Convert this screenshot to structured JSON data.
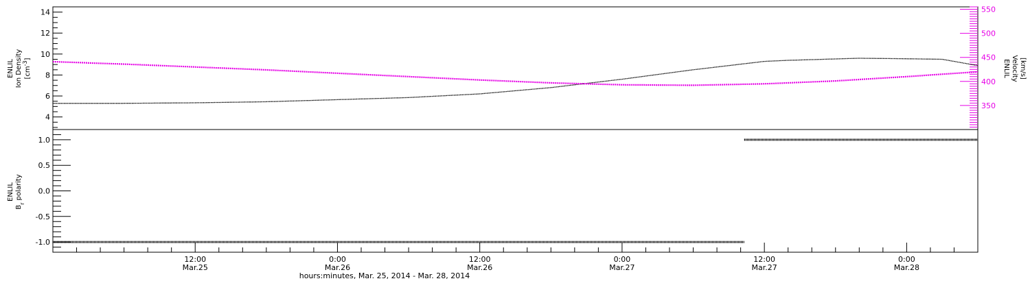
{
  "colors": {
    "density": "#000000",
    "velocity": "#e600e6",
    "polarity": "#000000",
    "axis": "#000000"
  },
  "x_axis": {
    "title": "hours:minutes, Mar. 25, 2014 - Mar. 28, 2014",
    "range_hours": [
      0,
      78
    ],
    "ticks": [
      {
        "hour": 12,
        "time": "12:00",
        "date": "Mar.25"
      },
      {
        "hour": 24,
        "time": "0:00",
        "date": "Mar.26"
      },
      {
        "hour": 36,
        "time": "12:00",
        "date": "Mar.26"
      },
      {
        "hour": 48,
        "time": "0:00",
        "date": "Mar.27"
      },
      {
        "hour": 60,
        "time": "12:00",
        "date": "Mar.27"
      },
      {
        "hour": 72,
        "time": "0:00",
        "date": "Mar.28"
      }
    ]
  },
  "chart_data": [
    {
      "type": "line",
      "panel": "top",
      "left_axis": {
        "label_line1": "ENLIL",
        "label_line2": "Ion Density",
        "label_units_base": "[cm",
        "label_units_sup": "-3",
        "label_units_end": "]",
        "range": [
          2.8,
          14.5
        ],
        "ticks": [
          "4",
          "6",
          "8",
          "10",
          "12",
          "14"
        ]
      },
      "right_axis": {
        "label_line1": "ENLIL",
        "label_line2": "Velocity",
        "label_units": "[km/s]",
        "range": [
          300,
          555
        ],
        "ticks": [
          "350",
          "400",
          "450",
          "500",
          "550"
        ]
      },
      "series": [
        {
          "axis": "left",
          "x": [
            0,
            6,
            12,
            18,
            24,
            30,
            36,
            42,
            48,
            54,
            60,
            62,
            68,
            72,
            75,
            78
          ],
          "y": [
            5.3,
            5.3,
            5.35,
            5.45,
            5.65,
            5.85,
            6.2,
            6.8,
            7.6,
            8.5,
            9.3,
            9.4,
            9.6,
            9.55,
            9.5,
            8.9
          ]
        },
        {
          "axis": "right",
          "x": [
            0,
            6,
            12,
            18,
            24,
            30,
            36,
            42,
            48,
            54,
            60,
            66,
            72,
            78
          ],
          "y": [
            441,
            436,
            430,
            424,
            417,
            410,
            403,
            397,
            393,
            392,
            395,
            401,
            410,
            420
          ]
        }
      ]
    },
    {
      "type": "scatter",
      "panel": "bottom",
      "left_axis": {
        "label_line1": "ENLIL",
        "label_line2_base": "B",
        "label_line2_sub": "r",
        "label_line2_end": " polarity",
        "range": [
          -1.2,
          1.2
        ],
        "ticks": [
          "-1.0",
          "-0.5",
          "0.0",
          "0.5",
          "1.0"
        ]
      },
      "series": [
        {
          "x_range": [
            0,
            58.3
          ],
          "value": -1.0
        },
        {
          "x_range": [
            58.3,
            78
          ],
          "value": 1.0
        }
      ]
    }
  ]
}
